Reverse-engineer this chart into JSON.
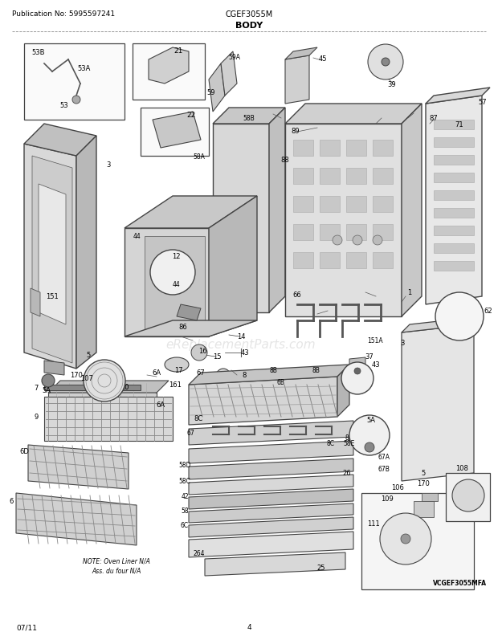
{
  "publication_no": "Publication No: 5995597241",
  "model": "CGEF3055M",
  "title": "BODY",
  "footer_date": "07/11",
  "footer_page": "4",
  "bg_color": "#ffffff",
  "text_color": "#000000",
  "fig_width": 6.2,
  "fig_height": 8.03,
  "dpi": 100,
  "watermark_text": "eReplacementParts.com",
  "note_text": "NOTE: Oven Liner N/A\nAss. du four N/A"
}
